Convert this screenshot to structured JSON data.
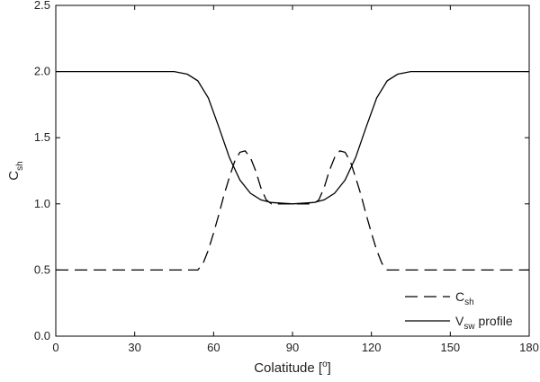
{
  "chart_data": {
    "type": "line",
    "xlabel": {
      "base": "Colatitude [",
      "sup": "o",
      "end": "]"
    },
    "ylabel": {
      "base": "C",
      "sub": "sh"
    },
    "xlim": [
      0,
      180
    ],
    "xticks": [
      0,
      30,
      60,
      90,
      120,
      150,
      180
    ],
    "ylim": [
      0,
      2.5
    ],
    "yticks": [
      {
        "value": 0,
        "label": "0.0"
      },
      0.5,
      {
        "value": 1,
        "label": "1.0"
      },
      1.5,
      {
        "value": 2,
        "label": "2.0"
      },
      2.5
    ],
    "legend": "lower right",
    "series": [
      {
        "name": {
          "base": "C",
          "sub": "sh"
        },
        "color": "#000000",
        "dash": true,
        "x": [
          0,
          54,
          56,
          58,
          60,
          62,
          64,
          66,
          68,
          70,
          72,
          74,
          76,
          78,
          80,
          82,
          90,
          98,
          100,
          102,
          104,
          106,
          108,
          110,
          112,
          114,
          116,
          118,
          120,
          122,
          124,
          126,
          180
        ],
        "values": [
          0.5,
          0.5,
          0.55,
          0.65,
          0.78,
          0.92,
          1.07,
          1.2,
          1.32,
          1.39,
          1.4,
          1.35,
          1.25,
          1.12,
          1.03,
          1.0,
          1.0,
          1.0,
          1.03,
          1.12,
          1.25,
          1.35,
          1.4,
          1.39,
          1.32,
          1.2,
          1.07,
          0.92,
          0.78,
          0.65,
          0.55,
          0.5,
          0.5
        ]
      },
      {
        "name": {
          "base": "V",
          "sub": "sw",
          "rest": " profile"
        },
        "color": "#000000",
        "dash": false,
        "x": [
          0,
          45,
          50,
          54,
          58,
          62,
          66,
          70,
          74,
          78,
          82,
          90,
          98,
          102,
          106,
          110,
          114,
          118,
          122,
          126,
          130,
          135,
          180
        ],
        "values": [
          2.0,
          2.0,
          1.98,
          1.93,
          1.8,
          1.58,
          1.35,
          1.18,
          1.08,
          1.03,
          1.01,
          1.0,
          1.01,
          1.03,
          1.08,
          1.18,
          1.35,
          1.58,
          1.8,
          1.93,
          1.98,
          2.0,
          2.0
        ]
      }
    ]
  }
}
